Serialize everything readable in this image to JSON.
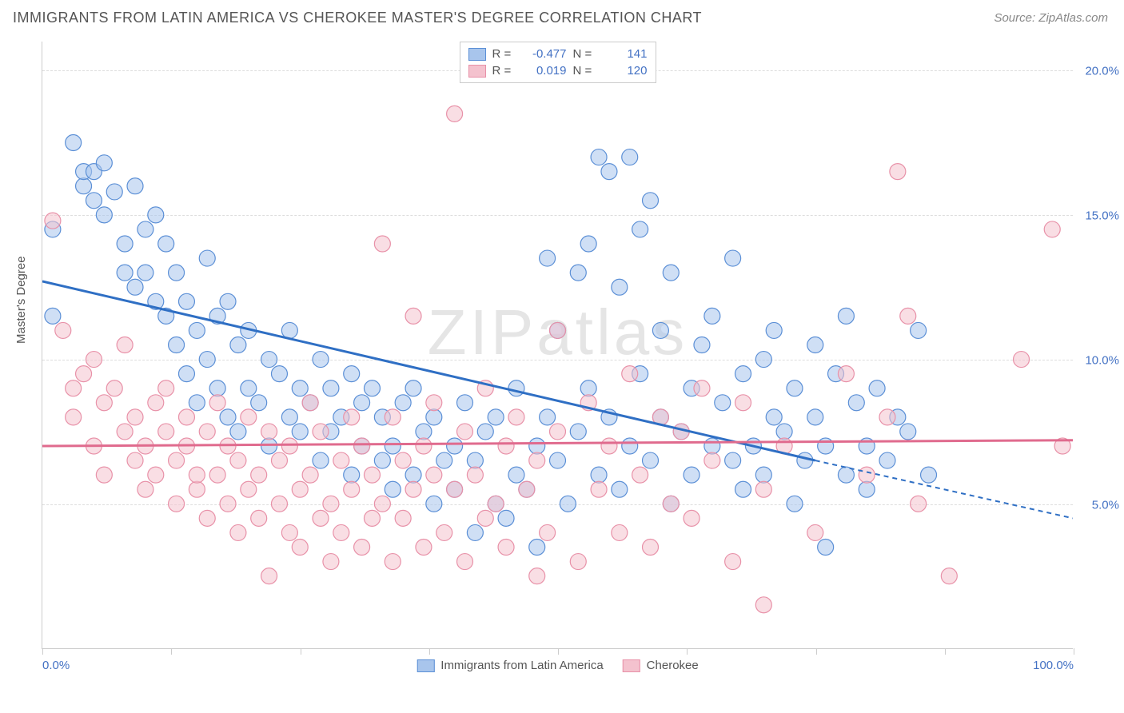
{
  "header": {
    "title": "IMMIGRANTS FROM LATIN AMERICA VS CHEROKEE MASTER'S DEGREE CORRELATION CHART",
    "source": "Source: ZipAtlas.com"
  },
  "chart": {
    "type": "scatter",
    "watermark": "ZIPatlas",
    "ylabel": "Master's Degree",
    "xlim": [
      0,
      100
    ],
    "ylim": [
      0,
      21
    ],
    "xtick_positions": [
      0,
      12.5,
      25,
      37.5,
      50,
      62.5,
      75,
      87.5,
      100
    ],
    "xtick_labels": {
      "0": "0.0%",
      "100": "100.0%"
    },
    "ytick_positions": [
      5,
      10,
      15,
      20
    ],
    "ytick_labels": [
      "5.0%",
      "10.0%",
      "15.0%",
      "20.0%"
    ],
    "grid_color": "#dddddd",
    "axis_color": "#cccccc",
    "label_fontsize": 15,
    "tick_color": "#4472c4",
    "series": [
      {
        "name": "Immigrants from Latin America",
        "fill_color": "#a8c5ec",
        "stroke_color": "#5b8fd6",
        "line_color": "#2f6fc4",
        "fill_opacity": 0.55,
        "marker_radius": 10,
        "R": "-0.477",
        "N": "141",
        "trend": {
          "x1": 0,
          "y1": 12.7,
          "x2_solid": 75,
          "y2_solid": 6.5,
          "x2_dash": 100,
          "y2_dash": 4.5
        },
        "points": [
          [
            1,
            11.5
          ],
          [
            1,
            14.5
          ],
          [
            3,
            17.5
          ],
          [
            4,
            16.0
          ],
          [
            4,
            16.5
          ],
          [
            5,
            16.5
          ],
          [
            5,
            15.5
          ],
          [
            6,
            16.8
          ],
          [
            6,
            15.0
          ],
          [
            7,
            15.8
          ],
          [
            8,
            14.0
          ],
          [
            8,
            13.0
          ],
          [
            9,
            12.5
          ],
          [
            9,
            16.0
          ],
          [
            10,
            14.5
          ],
          [
            10,
            13.0
          ],
          [
            11,
            12.0
          ],
          [
            11,
            15.0
          ],
          [
            12,
            14.0
          ],
          [
            12,
            11.5
          ],
          [
            13,
            10.5
          ],
          [
            13,
            13.0
          ],
          [
            14,
            12.0
          ],
          [
            14,
            9.5
          ],
          [
            15,
            11.0
          ],
          [
            15,
            8.5
          ],
          [
            16,
            10.0
          ],
          [
            16,
            13.5
          ],
          [
            17,
            9.0
          ],
          [
            17,
            11.5
          ],
          [
            18,
            8.0
          ],
          [
            18,
            12.0
          ],
          [
            19,
            10.5
          ],
          [
            19,
            7.5
          ],
          [
            20,
            9.0
          ],
          [
            20,
            11.0
          ],
          [
            21,
            8.5
          ],
          [
            22,
            10.0
          ],
          [
            22,
            7.0
          ],
          [
            23,
            9.5
          ],
          [
            24,
            8.0
          ],
          [
            24,
            11.0
          ],
          [
            25,
            7.5
          ],
          [
            25,
            9.0
          ],
          [
            26,
            8.5
          ],
          [
            27,
            10.0
          ],
          [
            27,
            6.5
          ],
          [
            28,
            9.0
          ],
          [
            28,
            7.5
          ],
          [
            29,
            8.0
          ],
          [
            30,
            6.0
          ],
          [
            30,
            9.5
          ],
          [
            31,
            7.0
          ],
          [
            31,
            8.5
          ],
          [
            32,
            9.0
          ],
          [
            33,
            6.5
          ],
          [
            33,
            8.0
          ],
          [
            34,
            7.0
          ],
          [
            34,
            5.5
          ],
          [
            35,
            8.5
          ],
          [
            36,
            6.0
          ],
          [
            36,
            9.0
          ],
          [
            37,
            7.5
          ],
          [
            38,
            5.0
          ],
          [
            38,
            8.0
          ],
          [
            39,
            6.5
          ],
          [
            40,
            7.0
          ],
          [
            40,
            5.5
          ],
          [
            41,
            8.5
          ],
          [
            42,
            4.0
          ],
          [
            42,
            6.5
          ],
          [
            43,
            7.5
          ],
          [
            44,
            5.0
          ],
          [
            44,
            8.0
          ],
          [
            45,
            4.5
          ],
          [
            46,
            6.0
          ],
          [
            46,
            9.0
          ],
          [
            47,
            5.5
          ],
          [
            48,
            7.0
          ],
          [
            48,
            3.5
          ],
          [
            49,
            8.0
          ],
          [
            49,
            13.5
          ],
          [
            50,
            6.5
          ],
          [
            50,
            11.0
          ],
          [
            51,
            5.0
          ],
          [
            52,
            7.5
          ],
          [
            52,
            13.0
          ],
          [
            53,
            9.0
          ],
          [
            53,
            14.0
          ],
          [
            54,
            6.0
          ],
          [
            54,
            17.0
          ],
          [
            55,
            8.0
          ],
          [
            55,
            16.5
          ],
          [
            56,
            5.5
          ],
          [
            56,
            12.5
          ],
          [
            57,
            7.0
          ],
          [
            57,
            17.0
          ],
          [
            58,
            9.5
          ],
          [
            58,
            14.5
          ],
          [
            59,
            6.5
          ],
          [
            59,
            15.5
          ],
          [
            60,
            8.0
          ],
          [
            60,
            11.0
          ],
          [
            61,
            5.0
          ],
          [
            61,
            13.0
          ],
          [
            62,
            7.5
          ],
          [
            63,
            9.0
          ],
          [
            63,
            6.0
          ],
          [
            64,
            10.5
          ],
          [
            65,
            7.0
          ],
          [
            65,
            11.5
          ],
          [
            66,
            8.5
          ],
          [
            67,
            6.5
          ],
          [
            67,
            13.5
          ],
          [
            68,
            9.5
          ],
          [
            68,
            5.5
          ],
          [
            69,
            7.0
          ],
          [
            70,
            10.0
          ],
          [
            70,
            6.0
          ],
          [
            71,
            8.0
          ],
          [
            71,
            11.0
          ],
          [
            72,
            7.5
          ],
          [
            73,
            9.0
          ],
          [
            73,
            5.0
          ],
          [
            74,
            6.5
          ],
          [
            75,
            8.0
          ],
          [
            75,
            10.5
          ],
          [
            76,
            7.0
          ],
          [
            76,
            3.5
          ],
          [
            77,
            9.5
          ],
          [
            78,
            6.0
          ],
          [
            78,
            11.5
          ],
          [
            79,
            8.5
          ],
          [
            80,
            7.0
          ],
          [
            80,
            5.5
          ],
          [
            81,
            9.0
          ],
          [
            82,
            6.5
          ],
          [
            83,
            8.0
          ],
          [
            84,
            7.5
          ],
          [
            85,
            11.0
          ],
          [
            86,
            6.0
          ]
        ]
      },
      {
        "name": "Cherokee",
        "fill_color": "#f4c2ce",
        "stroke_color": "#e891a8",
        "line_color": "#e06b8e",
        "fill_opacity": 0.55,
        "marker_radius": 10,
        "R": "0.019",
        "N": "120",
        "trend": {
          "x1": 0,
          "y1": 7.0,
          "x2_solid": 100,
          "y2_solid": 7.2,
          "x2_dash": 100,
          "y2_dash": 7.2
        },
        "points": [
          [
            1,
            14.8
          ],
          [
            2,
            11.0
          ],
          [
            3,
            9.0
          ],
          [
            3,
            8.0
          ],
          [
            4,
            9.5
          ],
          [
            5,
            10.0
          ],
          [
            5,
            7.0
          ],
          [
            6,
            8.5
          ],
          [
            6,
            6.0
          ],
          [
            7,
            9.0
          ],
          [
            8,
            7.5
          ],
          [
            8,
            10.5
          ],
          [
            9,
            6.5
          ],
          [
            9,
            8.0
          ],
          [
            10,
            7.0
          ],
          [
            10,
            5.5
          ],
          [
            11,
            8.5
          ],
          [
            11,
            6.0
          ],
          [
            12,
            7.5
          ],
          [
            12,
            9.0
          ],
          [
            13,
            5.0
          ],
          [
            13,
            6.5
          ],
          [
            14,
            7.0
          ],
          [
            14,
            8.0
          ],
          [
            15,
            5.5
          ],
          [
            15,
            6.0
          ],
          [
            16,
            7.5
          ],
          [
            16,
            4.5
          ],
          [
            17,
            6.0
          ],
          [
            17,
            8.5
          ],
          [
            18,
            5.0
          ],
          [
            18,
            7.0
          ],
          [
            19,
            6.5
          ],
          [
            19,
            4.0
          ],
          [
            20,
            5.5
          ],
          [
            20,
            8.0
          ],
          [
            21,
            4.5
          ],
          [
            21,
            6.0
          ],
          [
            22,
            7.5
          ],
          [
            22,
            2.5
          ],
          [
            23,
            5.0
          ],
          [
            23,
            6.5
          ],
          [
            24,
            4.0
          ],
          [
            24,
            7.0
          ],
          [
            25,
            5.5
          ],
          [
            25,
            3.5
          ],
          [
            26,
            6.0
          ],
          [
            26,
            8.5
          ],
          [
            27,
            4.5
          ],
          [
            27,
            7.5
          ],
          [
            28,
            5.0
          ],
          [
            28,
            3.0
          ],
          [
            29,
            6.5
          ],
          [
            29,
            4.0
          ],
          [
            30,
            5.5
          ],
          [
            30,
            8.0
          ],
          [
            31,
            3.5
          ],
          [
            31,
            7.0
          ],
          [
            32,
            4.5
          ],
          [
            32,
            6.0
          ],
          [
            33,
            5.0
          ],
          [
            33,
            14.0
          ],
          [
            34,
            3.0
          ],
          [
            34,
            8.0
          ],
          [
            35,
            6.5
          ],
          [
            35,
            4.5
          ],
          [
            36,
            5.5
          ],
          [
            36,
            11.5
          ],
          [
            37,
            7.0
          ],
          [
            37,
            3.5
          ],
          [
            38,
            6.0
          ],
          [
            38,
            8.5
          ],
          [
            39,
            4.0
          ],
          [
            40,
            5.5
          ],
          [
            40,
            18.5
          ],
          [
            41,
            7.5
          ],
          [
            41,
            3.0
          ],
          [
            42,
            6.0
          ],
          [
            43,
            4.5
          ],
          [
            43,
            9.0
          ],
          [
            44,
            5.0
          ],
          [
            45,
            7.0
          ],
          [
            45,
            3.5
          ],
          [
            46,
            8.0
          ],
          [
            47,
            5.5
          ],
          [
            48,
            6.5
          ],
          [
            48,
            2.5
          ],
          [
            49,
            4.0
          ],
          [
            50,
            7.5
          ],
          [
            50,
            11.0
          ],
          [
            52,
            3.0
          ],
          [
            53,
            8.5
          ],
          [
            54,
            5.5
          ],
          [
            55,
            7.0
          ],
          [
            56,
            4.0
          ],
          [
            57,
            9.5
          ],
          [
            58,
            6.0
          ],
          [
            59,
            3.5
          ],
          [
            60,
            8.0
          ],
          [
            61,
            5.0
          ],
          [
            62,
            7.5
          ],
          [
            63,
            4.5
          ],
          [
            64,
            9.0
          ],
          [
            65,
            6.5
          ],
          [
            67,
            3.0
          ],
          [
            68,
            8.5
          ],
          [
            70,
            5.5
          ],
          [
            70,
            1.5
          ],
          [
            72,
            7.0
          ],
          [
            75,
            4.0
          ],
          [
            78,
            9.5
          ],
          [
            80,
            6.0
          ],
          [
            82,
            8.0
          ],
          [
            83,
            16.5
          ],
          [
            84,
            11.5
          ],
          [
            85,
            5.0
          ],
          [
            88,
            2.5
          ],
          [
            95,
            10.0
          ],
          [
            98,
            14.5
          ],
          [
            99,
            7.0
          ]
        ]
      }
    ],
    "legend_bottom": [
      {
        "label": "Immigrants from Latin America",
        "fill": "#a8c5ec",
        "stroke": "#5b8fd6"
      },
      {
        "label": "Cherokee",
        "fill": "#f4c2ce",
        "stroke": "#e891a8"
      }
    ]
  }
}
